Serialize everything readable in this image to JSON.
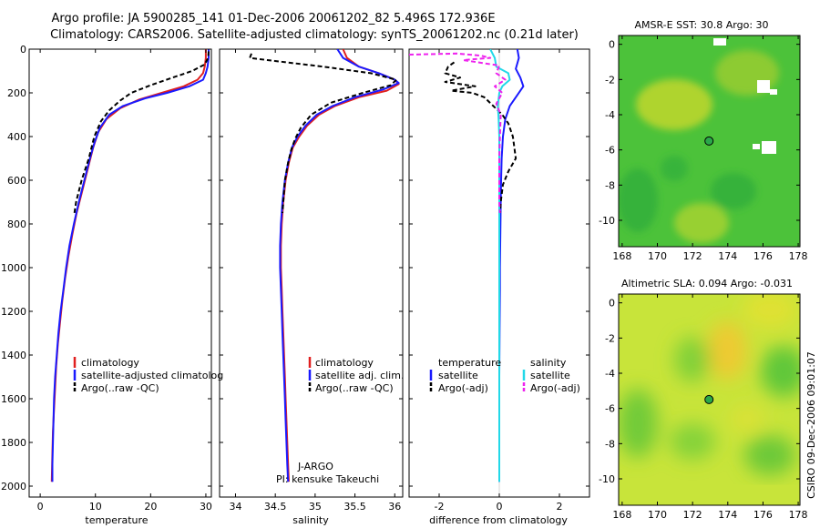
{
  "header": {
    "line1": "Argo profile: JA 5900285_141 01-Dec-2006 20061202_82 5.496S 172.936E",
    "line2": "Climatology: CARS2006. Satellite-adjusted climatology: synTS_20061202.nc (0.21d later)"
  },
  "credit": {
    "stamp": "CSIRO 09-Dec-2006 09:01:07",
    "agency": "J-ARGO",
    "pi": "PI: kensuke Takeuchi"
  },
  "colors": {
    "climatology": "#e02020",
    "satellite": "#1a1aff",
    "argo": "#000000",
    "sal_satellite": "#22d8e8",
    "sal_argo": "#ee22ee"
  },
  "chart_data": [
    {
      "id": "temperature",
      "type": "line",
      "xlabel": "temperature",
      "ylabel": "",
      "xlim": [
        -2,
        31
      ],
      "ylim": [
        0,
        2050
      ],
      "y_reversed": true,
      "xticks": [
        0,
        10,
        20,
        30
      ],
      "yticks": [
        0,
        200,
        400,
        600,
        800,
        1000,
        1200,
        1400,
        1600,
        1800,
        2000
      ],
      "legend": [
        "climatology",
        "satellite-adjusted climatolog",
        "Argo(..raw -QC)"
      ],
      "series": [
        {
          "name": "climatology",
          "color": "#e02020",
          "dash": "",
          "points": [
            [
              30,
              0
            ],
            [
              30,
              40
            ],
            [
              29.8,
              80
            ],
            [
              29.5,
              110
            ],
            [
              28.5,
              140
            ],
            [
              26,
              170
            ],
            [
              22,
              200
            ],
            [
              18,
              230
            ],
            [
              14.5,
              270
            ],
            [
              12,
              320
            ],
            [
              10.5,
              380
            ],
            [
              9.6,
              450
            ],
            [
              8.6,
              550
            ],
            [
              7.6,
              650
            ],
            [
              6.6,
              750
            ],
            [
              5.8,
              850
            ],
            [
              5.1,
              950
            ],
            [
              4.5,
              1050
            ],
            [
              4,
              1150
            ],
            [
              3.6,
              1250
            ],
            [
              3.2,
              1350
            ],
            [
              2.9,
              1450
            ],
            [
              2.7,
              1550
            ],
            [
              2.5,
              1650
            ],
            [
              2.3,
              1750
            ],
            [
              2.2,
              1850
            ],
            [
              2.1,
              1980
            ]
          ]
        },
        {
          "name": "satellite-adjusted climatolog",
          "color": "#1a1aff",
          "dash": "",
          "points": [
            [
              30.5,
              0
            ],
            [
              30.5,
              40
            ],
            [
              30.3,
              80
            ],
            [
              30,
              110
            ],
            [
              29.5,
              140
            ],
            [
              27,
              170
            ],
            [
              23,
              200
            ],
            [
              19,
              225
            ],
            [
              15,
              260
            ],
            [
              12.5,
              300
            ],
            [
              10.8,
              360
            ],
            [
              9.8,
              430
            ],
            [
              9,
              500
            ],
            [
              8,
              600
            ],
            [
              7,
              700
            ],
            [
              6.1,
              800
            ],
            [
              5.3,
              900
            ],
            [
              4.7,
              1000
            ],
            [
              4.2,
              1100
            ],
            [
              3.7,
              1200
            ],
            [
              3.3,
              1300
            ],
            [
              3,
              1400
            ],
            [
              2.7,
              1500
            ],
            [
              2.5,
              1600
            ],
            [
              2.4,
              1700
            ],
            [
              2.3,
              1800
            ],
            [
              2.2,
              1900
            ],
            [
              2.2,
              1980
            ]
          ]
        },
        {
          "name": "Argo(..raw -QC)",
          "color": "#000000",
          "dash": "5,3",
          "points": [
            [
              30.5,
              10
            ],
            [
              30.4,
              40
            ],
            [
              29.8,
              70
            ],
            [
              27.5,
              100
            ],
            [
              24,
              130
            ],
            [
              20,
              165
            ],
            [
              16.5,
              200
            ],
            [
              14.5,
              235
            ],
            [
              12.5,
              280
            ],
            [
              11,
              330
            ],
            [
              9.8,
              400
            ],
            [
              9.2,
              460
            ],
            [
              8.8,
              500
            ],
            [
              7.5,
              600
            ],
            [
              6.5,
              700
            ],
            [
              6.2,
              750
            ]
          ]
        }
      ]
    },
    {
      "id": "salinity",
      "type": "line",
      "xlabel": "salinity",
      "ylabel": "",
      "xlim": [
        33.8,
        36.1
      ],
      "ylim": [
        0,
        2050
      ],
      "y_reversed": true,
      "xticks": [
        34,
        34.5,
        35,
        35.5,
        36
      ],
      "legend": [
        "climatology",
        "satellite adj. clim.",
        "Argo(..raw -QC)"
      ],
      "series": [
        {
          "name": "climatology",
          "color": "#e02020",
          "dash": "",
          "points": [
            [
              35.35,
              0
            ],
            [
              35.4,
              40
            ],
            [
              35.55,
              80
            ],
            [
              35.8,
              110
            ],
            [
              36,
              140
            ],
            [
              36.05,
              160
            ],
            [
              35.9,
              190
            ],
            [
              35.55,
              220
            ],
            [
              35.25,
              260
            ],
            [
              35.05,
              300
            ],
            [
              34.9,
              350
            ],
            [
              34.8,
              400
            ],
            [
              34.72,
              450
            ],
            [
              34.67,
              520
            ],
            [
              34.63,
              600
            ],
            [
              34.6,
              700
            ],
            [
              34.58,
              800
            ],
            [
              34.57,
              900
            ],
            [
              34.57,
              1000
            ],
            [
              34.58,
              1100
            ],
            [
              34.59,
              1200
            ],
            [
              34.6,
              1300
            ],
            [
              34.61,
              1400
            ],
            [
              34.62,
              1500
            ],
            [
              34.63,
              1600
            ],
            [
              34.64,
              1700
            ],
            [
              34.65,
              1800
            ],
            [
              34.66,
              1900
            ],
            [
              34.67,
              1980
            ]
          ]
        },
        {
          "name": "satellite adj. clim.",
          "color": "#1a1aff",
          "dash": "",
          "points": [
            [
              35.28,
              0
            ],
            [
              35.35,
              40
            ],
            [
              35.55,
              80
            ],
            [
              35.8,
              110
            ],
            [
              36,
              140
            ],
            [
              36.05,
              155
            ],
            [
              35.85,
              185
            ],
            [
              35.5,
              220
            ],
            [
              35.22,
              260
            ],
            [
              35.02,
              300
            ],
            [
              34.88,
              350
            ],
            [
              34.78,
              400
            ],
            [
              34.71,
              450
            ],
            [
              34.66,
              520
            ],
            [
              34.62,
              600
            ],
            [
              34.59,
              700
            ],
            [
              34.57,
              800
            ],
            [
              34.56,
              900
            ],
            [
              34.56,
              1000
            ],
            [
              34.57,
              1100
            ],
            [
              34.58,
              1200
            ],
            [
              34.59,
              1300
            ],
            [
              34.6,
              1400
            ],
            [
              34.61,
              1500
            ],
            [
              34.62,
              1600
            ],
            [
              34.63,
              1700
            ],
            [
              34.64,
              1800
            ],
            [
              34.65,
              1900
            ],
            [
              34.66,
              1980
            ]
          ]
        },
        {
          "name": "Argo(..raw -QC)",
          "color": "#000000",
          "dash": "5,3",
          "points": [
            [
              34.2,
              20
            ],
            [
              34.18,
              40
            ],
            [
              34.4,
              50
            ],
            [
              35.1,
              80
            ],
            [
              35.7,
              110
            ],
            [
              36.02,
              140
            ],
            [
              35.95,
              165
            ],
            [
              35.6,
              200
            ],
            [
              35.2,
              245
            ],
            [
              34.95,
              300
            ],
            [
              34.82,
              360
            ],
            [
              34.75,
              410
            ],
            [
              34.7,
              460
            ],
            [
              34.66,
              520
            ],
            [
              34.62,
              600
            ],
            [
              34.6,
              700
            ],
            [
              34.59,
              750
            ]
          ]
        }
      ]
    },
    {
      "id": "difference",
      "type": "line",
      "xlabel": "difference from climatology",
      "ylabel": "",
      "xlim": [
        -3,
        3
      ],
      "ylim": [
        0,
        2050
      ],
      "y_reversed": true,
      "xticks": [
        -2,
        0,
        2
      ],
      "legend_titles": [
        "temperature",
        "salinity"
      ],
      "legend": [
        "satellite",
        "Argo(-adj)",
        "satellite",
        "Argo(-adj)"
      ],
      "series": [
        {
          "name": "temperature satellite",
          "color": "#1a1aff",
          "dash": "",
          "points": [
            [
              0.6,
              0
            ],
            [
              0.65,
              40
            ],
            [
              0.55,
              90
            ],
            [
              0.7,
              130
            ],
            [
              0.8,
              170
            ],
            [
              0.6,
              210
            ],
            [
              0.35,
              260
            ],
            [
              0.2,
              320
            ],
            [
              0.12,
              400
            ],
            [
              0.08,
              500
            ],
            [
              0.06,
              600
            ],
            [
              0.05,
              700
            ],
            [
              0.04,
              800
            ],
            [
              0.03,
              900
            ],
            [
              0.02,
              1000
            ],
            [
              0.02,
              1100
            ],
            [
              0.01,
              1300
            ],
            [
              0,
              1500
            ],
            [
              0,
              1700
            ],
            [
              0,
              1980
            ]
          ]
        },
        {
          "name": "temperature Argo(-adj)",
          "color": "#000000",
          "dash": "5,3",
          "points": [
            [
              -1.5,
              60
            ],
            [
              -1.7,
              80
            ],
            [
              -1.8,
              110
            ],
            [
              -1.3,
              130
            ],
            [
              -1.8,
              150
            ],
            [
              -0.8,
              170
            ],
            [
              -1.6,
              190
            ],
            [
              -0.9,
              200
            ],
            [
              -0.5,
              220
            ],
            [
              -0.2,
              260
            ],
            [
              0.1,
              300
            ],
            [
              0.3,
              340
            ],
            [
              0.45,
              400
            ],
            [
              0.5,
              450
            ],
            [
              0.55,
              500
            ],
            [
              0.3,
              560
            ],
            [
              0.12,
              620
            ],
            [
              0.05,
              700
            ],
            [
              0.03,
              750
            ]
          ]
        },
        {
          "name": "salinity satellite",
          "color": "#22d8e8",
          "dash": "",
          "points": [
            [
              -0.3,
              0
            ],
            [
              -0.15,
              40
            ],
            [
              -0.1,
              80
            ],
            [
              0.3,
              110
            ],
            [
              0.35,
              140
            ],
            [
              0.1,
              170
            ],
            [
              0,
              200
            ],
            [
              -0.05,
              260
            ],
            [
              -0.02,
              320
            ],
            [
              0,
              400
            ],
            [
              0,
              600
            ],
            [
              0,
              800
            ],
            [
              0,
              1000
            ],
            [
              0,
              1200
            ],
            [
              0,
              1400
            ],
            [
              0,
              1600
            ],
            [
              0,
              1800
            ],
            [
              0,
              1980
            ]
          ]
        },
        {
          "name": "salinity Argo(-adj)",
          "color": "#ee22ee",
          "dash": "5,3",
          "points": [
            [
              -3,
              25
            ],
            [
              -1.4,
              20
            ],
            [
              -0.6,
              30
            ],
            [
              -0.3,
              40
            ],
            [
              -1.2,
              50
            ],
            [
              0,
              75
            ],
            [
              -0.1,
              110
            ],
            [
              0.2,
              140
            ],
            [
              -0.15,
              170
            ],
            [
              0.1,
              200
            ],
            [
              -0.1,
              250
            ],
            [
              0.05,
              300
            ],
            [
              0.02,
              400
            ],
            [
              0,
              500
            ],
            [
              0,
              600
            ],
            [
              0,
              700
            ],
            [
              0.02,
              750
            ]
          ]
        }
      ]
    },
    {
      "id": "sst_map",
      "type": "heatmap",
      "title": "AMSR-E SST: 30.8 Argo: 30",
      "xlim": [
        167.8,
        178.1
      ],
      "ylim": [
        -11.5,
        0.5
      ],
      "xticks": [
        168,
        170,
        172,
        174,
        176,
        178
      ],
      "yticks": [
        0,
        -2,
        -4,
        -6,
        -8,
        -10
      ],
      "marker": {
        "lon": 172.936,
        "lat": -5.496
      }
    },
    {
      "id": "sla_map",
      "type": "heatmap",
      "title": "Altimetric SLA: 0.094 Argo: -0.031",
      "xlim": [
        167.8,
        178.1
      ],
      "ylim": [
        -11.5,
        0.5
      ],
      "xticks": [
        168,
        170,
        172,
        174,
        176,
        178
      ],
      "yticks": [
        0,
        -2,
        -4,
        -6,
        -8,
        -10
      ],
      "marker": {
        "lon": 172.936,
        "lat": -5.496
      }
    }
  ]
}
